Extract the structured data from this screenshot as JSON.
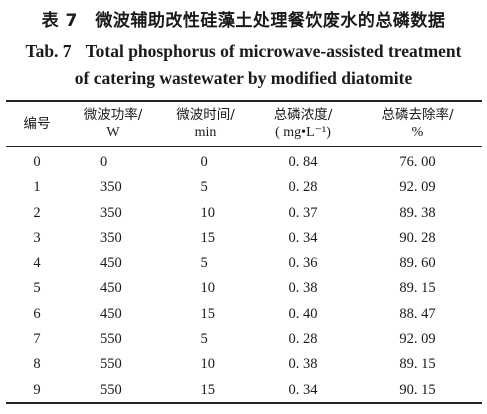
{
  "title_zh": "表 7　微波辅助改性硅藻土处理餐饮废水的总磷数据",
  "title_en_label": "Tab. 7",
  "title_en_line1": "Total phosphorus of microwave-assisted treatment",
  "title_en_line2": "of catering wastewater by modified diatomite",
  "headers": {
    "col1": "编号",
    "col2_zh": "微波功率/",
    "col2_unit": "W",
    "col3_zh": "微波时间/",
    "col3_unit": "min",
    "col4_zh": "总磷浓度/",
    "col4_unit": "( mg•L⁻¹)",
    "col5_zh": "总磷去除率/",
    "col5_unit": "%"
  },
  "rows": [
    {
      "id": "0",
      "power": "0",
      "time": "0",
      "conc": "0. 84",
      "removal": "76. 00"
    },
    {
      "id": "1",
      "power": "350",
      "time": "5",
      "conc": "0. 28",
      "removal": "92. 09"
    },
    {
      "id": "2",
      "power": "350",
      "time": "10",
      "conc": "0. 37",
      "removal": "89. 38"
    },
    {
      "id": "3",
      "power": "350",
      "time": "15",
      "conc": "0. 34",
      "removal": "90. 28"
    },
    {
      "id": "4",
      "power": "450",
      "time": "5",
      "conc": "0. 36",
      "removal": "89. 60"
    },
    {
      "id": "5",
      "power": "450",
      "time": "10",
      "conc": "0. 38",
      "removal": "89. 15"
    },
    {
      "id": "6",
      "power": "450",
      "time": "15",
      "conc": "0. 40",
      "removal": "88. 47"
    },
    {
      "id": "7",
      "power": "550",
      "time": "5",
      "conc": "0. 28",
      "removal": "92. 09"
    },
    {
      "id": "8",
      "power": "550",
      "time": "10",
      "conc": "0. 38",
      "removal": "89. 15"
    },
    {
      "id": "9",
      "power": "550",
      "time": "15",
      "conc": "0. 34",
      "removal": "90. 15"
    }
  ]
}
